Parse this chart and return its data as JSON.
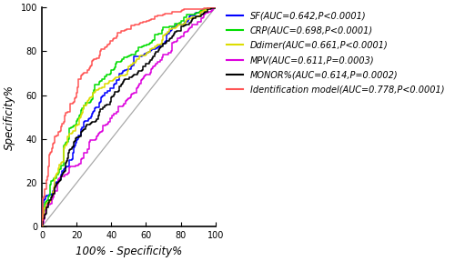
{
  "xlabel": "100% - Specificity%",
  "ylabel": "Specificity%",
  "xlim": [
    0,
    100
  ],
  "ylim": [
    0,
    100
  ],
  "xticks": [
    0,
    20,
    40,
    60,
    80,
    100
  ],
  "yticks": [
    0,
    20,
    40,
    60,
    80,
    100
  ],
  "legend_entries": [
    {
      "label": "SF(AUC=0.642,P<0.0001)",
      "color": "#0000FF"
    },
    {
      "label": "CRP(AUC=0.698,P<0.0001)",
      "color": "#00DD00"
    },
    {
      "label": "Ddimer(AUC=0.661,P<0.0001)",
      "color": "#DDDD00"
    },
    {
      "label": "MPV(AUC=0.611,P=0.0003)",
      "color": "#DD00DD"
    },
    {
      "label": "MONOR%(AUC=0.614,P=0.0002)",
      "color": "#000000"
    },
    {
      "label": "Identification model(AUC=0.778,P<0.0001)",
      "color": "#FF5555"
    }
  ],
  "curves": [
    {
      "key": "SF",
      "auc": 0.642,
      "color": "#0000FF",
      "seed": 11
    },
    {
      "key": "CRP",
      "auc": 0.698,
      "color": "#00DD00",
      "seed": 22
    },
    {
      "key": "Ddimer",
      "auc": 0.661,
      "color": "#DDDD00",
      "seed": 33
    },
    {
      "key": "MPV",
      "auc": 0.611,
      "color": "#DD00DD",
      "seed": 44
    },
    {
      "key": "MONOR",
      "auc": 0.614,
      "color": "#000000",
      "seed": 55
    },
    {
      "key": "Ident",
      "auc": 0.778,
      "color": "#FF5555",
      "seed": 66
    }
  ],
  "diagonal_color": "#AAAAAA",
  "background_color": "#ffffff",
  "tick_fontsize": 7,
  "label_fontsize": 8.5,
  "legend_fontsize": 7.0,
  "figsize": [
    5.0,
    2.87
  ],
  "dpi": 100
}
